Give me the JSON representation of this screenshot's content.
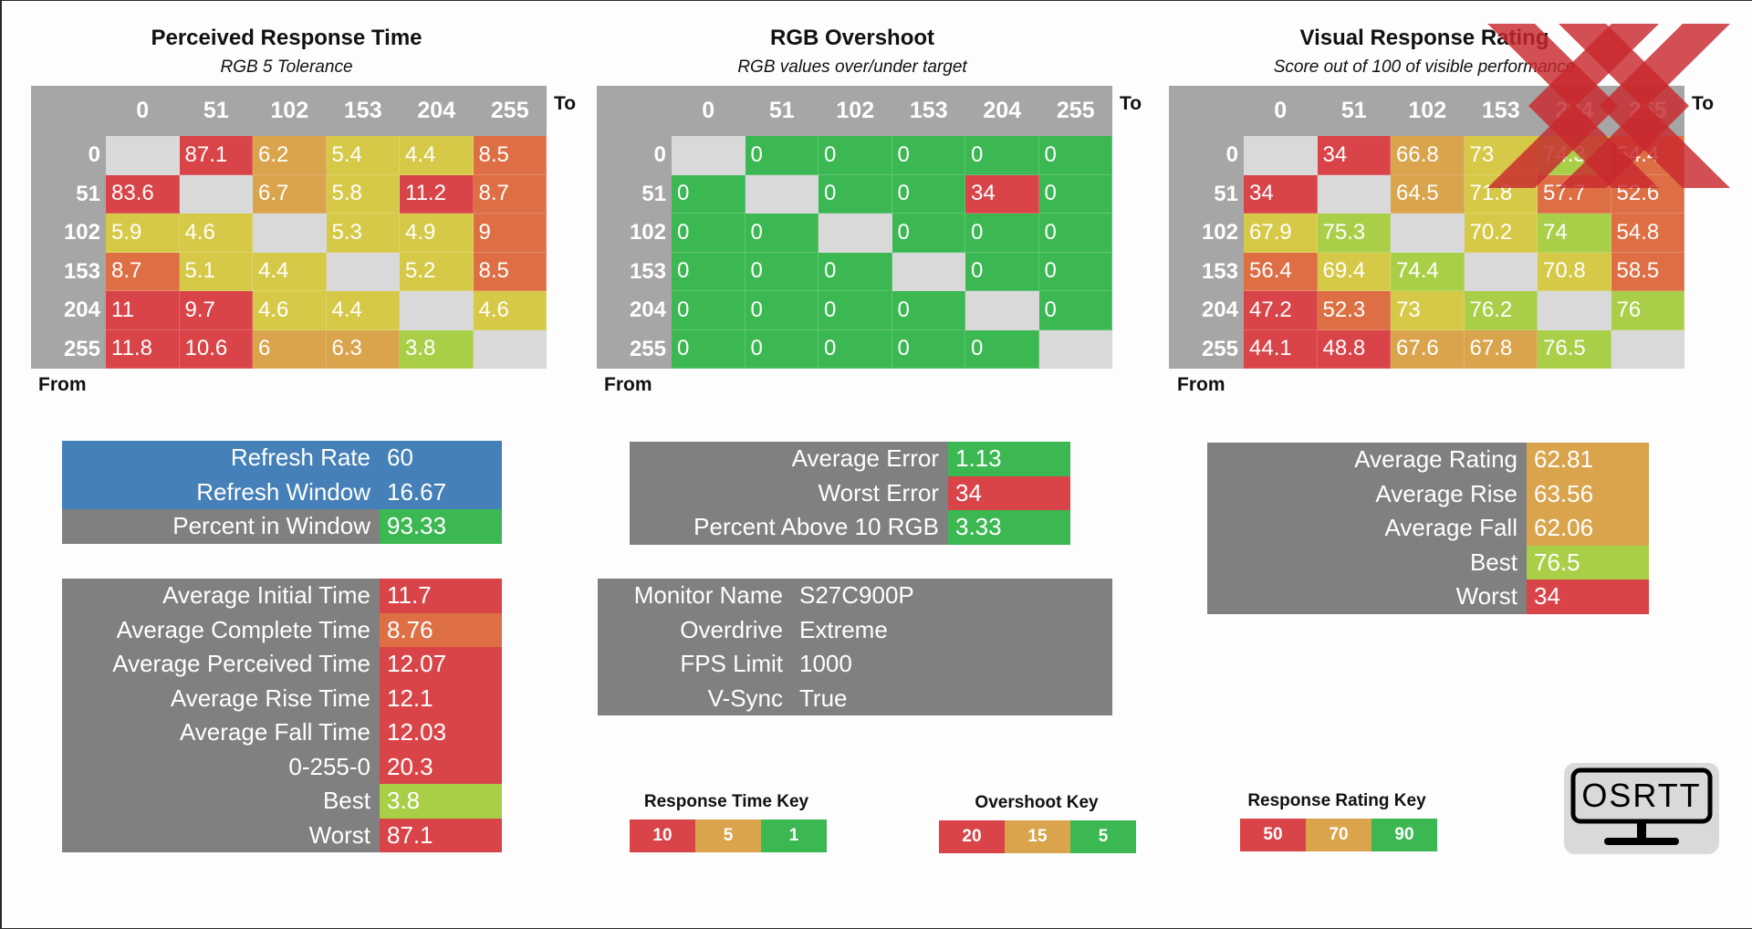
{
  "colors": {
    "red": "#d94449",
    "orange": "#de6f45",
    "amber": "#d9a44c",
    "yellow": "#d6c948",
    "lime": "#a9cf49",
    "green": "#3cb853",
    "blue": "#4580b8",
    "gray": "#808080",
    "lightgray": "#a6a6a6",
    "diag": "#d9d9d9"
  },
  "axis_to": "To",
  "axis_from": "From",
  "chart_data": [
    {
      "type": "heatmap",
      "title": "Perceived Response Time",
      "subtitle": "RGB 5 Tolerance",
      "columns": [
        "0",
        "51",
        "102",
        "153",
        "204",
        "255"
      ],
      "rows": [
        "0",
        "51",
        "102",
        "153",
        "204",
        "255"
      ],
      "values": [
        [
          null,
          "87.1",
          "6.2",
          "5.4",
          "4.4",
          "8.5"
        ],
        [
          "83.6",
          null,
          "6.7",
          "5.8",
          "11.2",
          "8.7"
        ],
        [
          "5.9",
          "4.6",
          null,
          "5.3",
          "4.9",
          "9"
        ],
        [
          "8.7",
          "5.1",
          "4.4",
          null,
          "5.2",
          "8.5"
        ],
        [
          "11",
          "9.7",
          "4.6",
          "4.4",
          null,
          "4.6"
        ],
        [
          "11.8",
          "10.6",
          "6",
          "6.3",
          "3.8",
          null
        ]
      ],
      "cell_colors": [
        [
          null,
          "#d94449",
          "#d9a44c",
          "#d6c948",
          "#d6c948",
          "#de6f45"
        ],
        [
          "#d94449",
          null,
          "#d9a44c",
          "#d6c948",
          "#d94449",
          "#de6f45"
        ],
        [
          "#d6c948",
          "#d6c948",
          null,
          "#d6c948",
          "#d6c948",
          "#de6f45"
        ],
        [
          "#de6f45",
          "#d6c948",
          "#d6c948",
          null,
          "#d6c948",
          "#de6f45"
        ],
        [
          "#d94449",
          "#d94449",
          "#d6c948",
          "#d6c948",
          null,
          "#d6c948"
        ],
        [
          "#d94449",
          "#d94449",
          "#d9a44c",
          "#d9a44c",
          "#a9cf49",
          null
        ]
      ]
    },
    {
      "type": "heatmap",
      "title": "RGB Overshoot",
      "subtitle": "RGB values over/under target",
      "columns": [
        "0",
        "51",
        "102",
        "153",
        "204",
        "255"
      ],
      "rows": [
        "0",
        "51",
        "102",
        "153",
        "204",
        "255"
      ],
      "values": [
        [
          null,
          "0",
          "0",
          "0",
          "0",
          "0"
        ],
        [
          "0",
          null,
          "0",
          "0",
          "34",
          "0"
        ],
        [
          "0",
          "0",
          null,
          "0",
          "0",
          "0"
        ],
        [
          "0",
          "0",
          "0",
          null,
          "0",
          "0"
        ],
        [
          "0",
          "0",
          "0",
          "0",
          null,
          "0"
        ],
        [
          "0",
          "0",
          "0",
          "0",
          "0",
          null
        ]
      ],
      "cell_colors": [
        [
          null,
          "#3cb853",
          "#3cb853",
          "#3cb853",
          "#3cb853",
          "#3cb853"
        ],
        [
          "#3cb853",
          null,
          "#3cb853",
          "#3cb853",
          "#d94449",
          "#3cb853"
        ],
        [
          "#3cb853",
          "#3cb853",
          null,
          "#3cb853",
          "#3cb853",
          "#3cb853"
        ],
        [
          "#3cb853",
          "#3cb853",
          "#3cb853",
          null,
          "#3cb853",
          "#3cb853"
        ],
        [
          "#3cb853",
          "#3cb853",
          "#3cb853",
          "#3cb853",
          null,
          "#3cb853"
        ],
        [
          "#3cb853",
          "#3cb853",
          "#3cb853",
          "#3cb853",
          "#3cb853",
          null
        ]
      ]
    },
    {
      "type": "heatmap",
      "title": "Visual Response Rating",
      "subtitle": "Score out of 100 of visible performance",
      "columns": [
        "0",
        "51",
        "102",
        "153",
        "204",
        "255"
      ],
      "rows": [
        "0",
        "51",
        "102",
        "153",
        "204",
        "255"
      ],
      "values": [
        [
          null,
          "34",
          "66.8",
          "73",
          "74.3",
          "54.4"
        ],
        [
          "34",
          null,
          "64.5",
          "71.8",
          "57.7",
          "52.6"
        ],
        [
          "67.9",
          "75.3",
          null,
          "70.2",
          "74",
          "54.8"
        ],
        [
          "56.4",
          "69.4",
          "74.4",
          null,
          "70.8",
          "58.5"
        ],
        [
          "47.2",
          "52.3",
          "73",
          "76.2",
          null,
          "76"
        ],
        [
          "44.1",
          "48.8",
          "67.6",
          "67.8",
          "76.5",
          null
        ]
      ],
      "cell_colors": [
        [
          null,
          "#d94449",
          "#d9a44c",
          "#d6c948",
          "#a9cf49",
          "#de6f45"
        ],
        [
          "#d94449",
          null,
          "#d9a44c",
          "#d6c948",
          "#de6f45",
          "#de6f45"
        ],
        [
          "#d6c948",
          "#a9cf49",
          null,
          "#d6c948",
          "#a9cf49",
          "#de6f45"
        ],
        [
          "#de6f45",
          "#d6c948",
          "#a9cf49",
          null,
          "#d6c948",
          "#de6f45"
        ],
        [
          "#d94449",
          "#de6f45",
          "#d6c948",
          "#a9cf49",
          null,
          "#a9cf49"
        ],
        [
          "#d94449",
          "#d94449",
          "#d9a44c",
          "#d9a44c",
          "#a9cf49",
          null
        ]
      ]
    }
  ],
  "refresh": [
    {
      "label": "Refresh Rate",
      "value": "60",
      "label_bg": "#4580b8",
      "value_bg": "#4580b8"
    },
    {
      "label": "Refresh Window",
      "value": "16.67",
      "label_bg": "#4580b8",
      "value_bg": "#4580b8"
    },
    {
      "label": "Percent in Window",
      "value": "93.33",
      "label_bg": "#808080",
      "value_bg": "#3cb853"
    }
  ],
  "response_stats": [
    {
      "label": "Average Initial Time",
      "value": "11.7",
      "value_bg": "#d94449"
    },
    {
      "label": "Average Complete Time",
      "value": "8.76",
      "value_bg": "#de6f45"
    },
    {
      "label": "Average Perceived Time",
      "value": "12.07",
      "value_bg": "#d94449"
    },
    {
      "label": "Average Rise Time",
      "value": "12.1",
      "value_bg": "#d94449"
    },
    {
      "label": "Average Fall Time",
      "value": "12.03",
      "value_bg": "#d94449"
    },
    {
      "label": "0-255-0",
      "value": "20.3",
      "value_bg": "#d94449"
    },
    {
      "label": "Best",
      "value": "3.8",
      "value_bg": "#a9cf49"
    },
    {
      "label": "Worst",
      "value": "87.1",
      "value_bg": "#d94449"
    }
  ],
  "overshoot_stats": [
    {
      "label": "Average Error",
      "value": "1.13",
      "value_bg": "#3cb853"
    },
    {
      "label": "Worst Error",
      "value": "34",
      "value_bg": "#d94449"
    },
    {
      "label": "Percent Above 10 RGB",
      "value": "3.33",
      "value_bg": "#3cb853"
    }
  ],
  "monitor_info": [
    {
      "label": "Monitor Name",
      "value": "S27C900P"
    },
    {
      "label": "Overdrive",
      "value": "Extreme"
    },
    {
      "label": "FPS Limit",
      "value": "1000"
    },
    {
      "label": "V-Sync",
      "value": "True"
    }
  ],
  "rating_stats": [
    {
      "label": "Average Rating",
      "value": "62.81",
      "value_bg": "#d9a44c"
    },
    {
      "label": "Average Rise",
      "value": "63.56",
      "value_bg": "#d9a44c"
    },
    {
      "label": "Average Fall",
      "value": "62.06",
      "value_bg": "#d9a44c"
    },
    {
      "label": "Best",
      "value": "76.5",
      "value_bg": "#a9cf49"
    },
    {
      "label": "Worst",
      "value": "34",
      "value_bg": "#d94449"
    }
  ],
  "keys": [
    {
      "title": "Response Time Key",
      "items": [
        {
          "label": "10",
          "color": "#d94449"
        },
        {
          "label": "5",
          "color": "#d9a44c"
        },
        {
          "label": "1",
          "color": "#3cb853"
        }
      ]
    },
    {
      "title": "Overshoot Key",
      "items": [
        {
          "label": "20",
          "color": "#d94449"
        },
        {
          "label": "15",
          "color": "#d9a44c"
        },
        {
          "label": "5",
          "color": "#3cb853"
        }
      ]
    },
    {
      "title": "Response Rating Key",
      "items": [
        {
          "label": "50",
          "color": "#d94449"
        },
        {
          "label": "70",
          "color": "#d9a44c"
        },
        {
          "label": "90",
          "color": "#3cb853"
        }
      ]
    }
  ],
  "logo_text": "OSRTT",
  "watermark_icon": "x-mark-icon"
}
